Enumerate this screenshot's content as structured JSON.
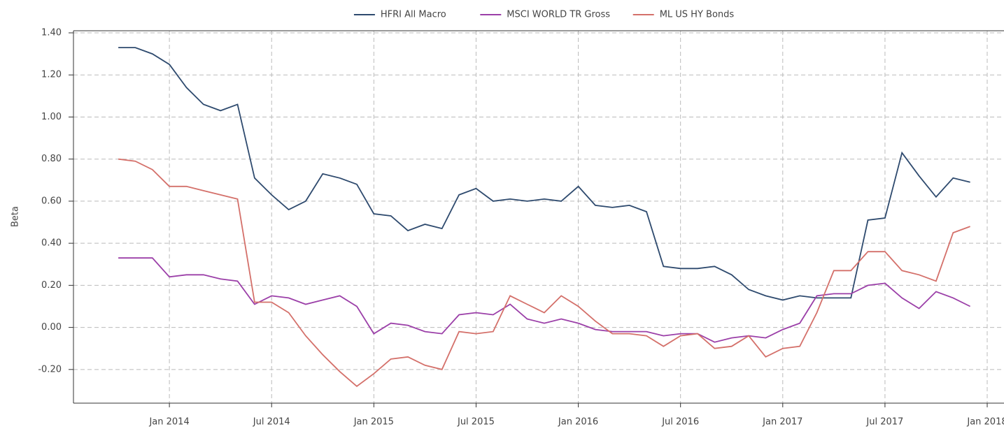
{
  "chart_data": {
    "type": "line",
    "y_label": "Beta",
    "x": [
      "2013-10",
      "2013-11",
      "2013-12",
      "2014-01",
      "2014-02",
      "2014-03",
      "2014-04",
      "2014-05",
      "2014-06",
      "2014-07",
      "2014-08",
      "2014-09",
      "2014-10",
      "2014-11",
      "2014-12",
      "2015-01",
      "2015-02",
      "2015-03",
      "2015-04",
      "2015-05",
      "2015-06",
      "2015-07",
      "2015-08",
      "2015-09",
      "2015-10",
      "2015-11",
      "2015-12",
      "2016-01",
      "2016-02",
      "2016-03",
      "2016-04",
      "2016-05",
      "2016-06",
      "2016-07",
      "2016-08",
      "2016-09",
      "2016-10",
      "2016-11",
      "2016-12",
      "2017-01",
      "2017-02",
      "2017-03",
      "2017-04",
      "2017-05",
      "2017-06",
      "2017-07",
      "2017-08",
      "2017-09",
      "2017-10",
      "2017-11",
      "2017-12"
    ],
    "series": [
      {
        "name": "HFRI All Macro",
        "color": "#2e4a6e",
        "values": [
          1.33,
          1.33,
          1.3,
          1.25,
          1.14,
          1.06,
          1.03,
          1.06,
          0.71,
          0.63,
          0.56,
          0.6,
          0.73,
          0.71,
          0.68,
          0.54,
          0.53,
          0.46,
          0.49,
          0.47,
          0.63,
          0.66,
          0.6,
          0.61,
          0.6,
          0.61,
          0.6,
          0.67,
          0.58,
          0.57,
          0.58,
          0.55,
          0.29,
          0.28,
          0.28,
          0.29,
          0.25,
          0.18,
          0.15,
          0.13,
          0.15,
          0.14,
          0.14,
          0.14,
          0.51,
          0.52,
          0.83,
          0.72,
          0.62,
          0.71,
          0.69
        ]
      },
      {
        "name": "MSCI WORLD TR Gross",
        "color": "#9b3fa8",
        "values": [
          0.33,
          0.33,
          0.33,
          0.24,
          0.25,
          0.25,
          0.23,
          0.22,
          0.11,
          0.15,
          0.14,
          0.11,
          0.13,
          0.15,
          0.1,
          -0.03,
          0.02,
          0.01,
          -0.02,
          -0.03,
          0.06,
          0.07,
          0.06,
          0.11,
          0.04,
          0.02,
          0.04,
          0.02,
          -0.01,
          -0.02,
          -0.02,
          -0.02,
          -0.04,
          -0.03,
          -0.03,
          -0.07,
          -0.05,
          -0.04,
          -0.05,
          -0.01,
          0.02,
          0.15,
          0.16,
          0.16,
          0.2,
          0.21,
          0.14,
          0.09,
          0.17,
          0.14,
          0.1
        ]
      },
      {
        "name": "ML US HY Bonds",
        "color": "#d4706a",
        "values": [
          0.8,
          0.79,
          0.75,
          0.67,
          0.67,
          0.65,
          0.63,
          0.61,
          0.12,
          0.12,
          0.07,
          -0.04,
          -0.13,
          -0.21,
          -0.28,
          -0.22,
          -0.15,
          -0.14,
          -0.18,
          -0.2,
          -0.02,
          -0.03,
          -0.02,
          0.15,
          0.11,
          0.07,
          0.15,
          0.1,
          0.03,
          -0.03,
          -0.03,
          -0.04,
          -0.09,
          -0.04,
          -0.03,
          -0.1,
          -0.09,
          -0.04,
          -0.14,
          -0.1,
          -0.09,
          0.07,
          0.27,
          0.27,
          0.36,
          0.36,
          0.27,
          0.25,
          0.22,
          0.45,
          0.48
        ]
      }
    ],
    "xlim": [
      "2013-07",
      "2018-01"
    ],
    "xticks": [
      {
        "value": "2014-01",
        "label": "Jan 2014"
      },
      {
        "value": "2014-07",
        "label": "Jul 2014"
      },
      {
        "value": "2015-01",
        "label": "Jan 2015"
      },
      {
        "value": "2015-07",
        "label": "Jul 2015"
      },
      {
        "value": "2016-01",
        "label": "Jan 2016"
      },
      {
        "value": "2016-07",
        "label": "Jul 2016"
      },
      {
        "value": "2017-01",
        "label": "Jan 2017"
      },
      {
        "value": "2017-07",
        "label": "Jul 2017"
      },
      {
        "value": "2018-01",
        "label": "Jan 2018"
      }
    ],
    "ylim": [
      -0.36,
      1.41
    ],
    "yticks": [
      {
        "value": -0.2,
        "label": "-0.20"
      },
      {
        "value": 0,
        "label": "0.00"
      },
      {
        "value": 0.2,
        "label": "0.20"
      },
      {
        "value": 0.4,
        "label": "0.40"
      },
      {
        "value": 0.6,
        "label": "0.60"
      },
      {
        "value": 0.8,
        "label": "0.80"
      },
      {
        "value": 1.0,
        "label": "1.00"
      },
      {
        "value": 1.2,
        "label": "1.20"
      },
      {
        "value": 1.4,
        "label": "1.40"
      }
    ],
    "grid": true,
    "legend": "top"
  }
}
